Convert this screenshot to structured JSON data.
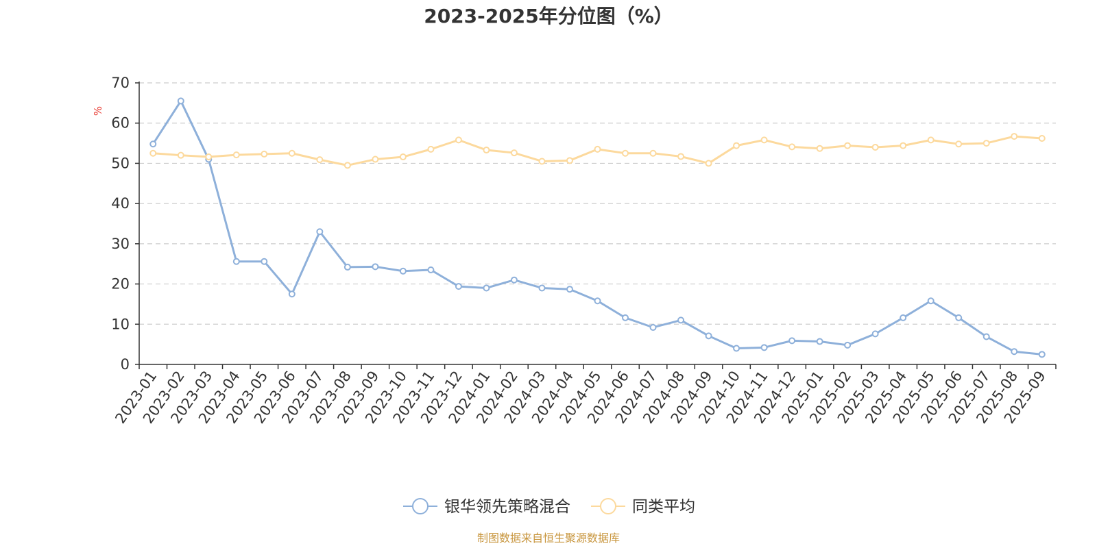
{
  "chart_data": {
    "type": "line",
    "title": "2023-2025年分位图（%）",
    "ylabel": "%",
    "xlabel": "",
    "ylim": [
      0,
      70
    ],
    "yticks": [
      0,
      10,
      20,
      30,
      40,
      50,
      60,
      70
    ],
    "grid": "horizontal-dashed",
    "legend_position": "bottom-center",
    "categories": [
      "2023-01",
      "2023-02",
      "2023-03",
      "2023-04",
      "2023-05",
      "2023-06",
      "2023-07",
      "2023-08",
      "2023-09",
      "2023-10",
      "2023-11",
      "2023-12",
      "2024-01",
      "2024-02",
      "2024-03",
      "2024-04",
      "2024-05",
      "2024-06",
      "2024-07",
      "2024-08",
      "2024-09",
      "2024-10",
      "2024-11",
      "2024-12",
      "2025-01",
      "2025-02",
      "2025-03",
      "2025-04",
      "2025-05",
      "2025-06",
      "2025-07",
      "2025-08",
      "2025-09"
    ],
    "series": [
      {
        "name": "银华领先策略混合",
        "color": "#8eb0da",
        "values": [
          54.8,
          65.5,
          51.0,
          25.6,
          25.6,
          17.5,
          33.0,
          24.2,
          24.3,
          23.2,
          23.5,
          19.4,
          19.0,
          21.0,
          19.0,
          18.7,
          15.8,
          11.6,
          9.2,
          11.0,
          7.1,
          4.0,
          4.2,
          5.9,
          5.7,
          4.8,
          7.6,
          11.6,
          15.8,
          11.6,
          6.9,
          3.2,
          2.5
        ]
      },
      {
        "name": "同类平均",
        "color": "#fcd99d",
        "values": [
          52.5,
          52.0,
          51.6,
          52.1,
          52.3,
          52.5,
          50.9,
          49.5,
          51.0,
          51.6,
          53.5,
          55.8,
          53.3,
          52.6,
          50.5,
          50.7,
          53.5,
          52.5,
          52.5,
          51.7,
          50.0,
          54.4,
          55.8,
          54.1,
          53.7,
          54.4,
          54.0,
          54.4,
          55.8,
          54.8,
          55.0,
          56.7,
          56.2
        ]
      }
    ],
    "source": "制图数据来自恒生聚源数据库"
  }
}
